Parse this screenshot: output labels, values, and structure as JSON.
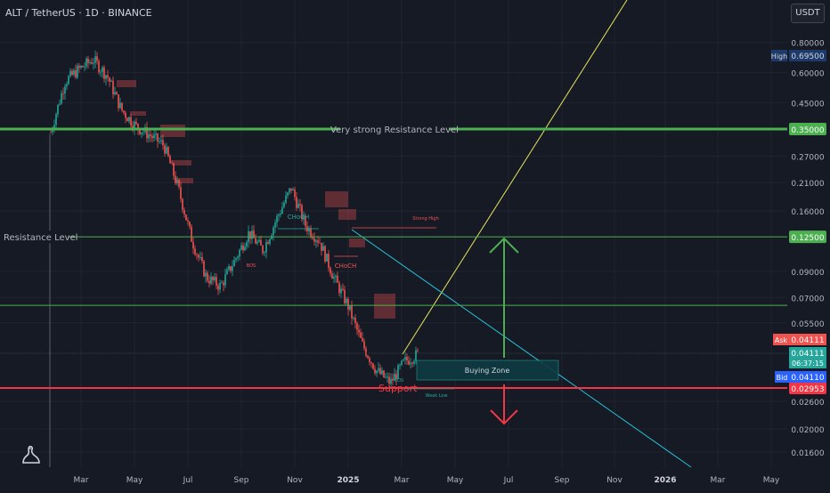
{
  "header": {
    "symbol": "ALT / TetherUS · 1D · BINANCE",
    "currency": "USDT"
  },
  "colors": {
    "background": "#161a25",
    "up": "#26a69a",
    "down": "#ef5350",
    "resistance": "#4caf50",
    "support": "#f23645",
    "trend_up": "#e8e35a",
    "trend_down": "#26c6da"
  },
  "chart_data": {
    "type": "candlestick",
    "scale": "log",
    "ylim": [
      0.0145,
      1.2
    ],
    "y_ticks": [
      "0.80000",
      "0.60000",
      "0.45000",
      "0.35000",
      "0.27000",
      "0.21000",
      "0.16000",
      "0.12500",
      "0.09000",
      "0.07000",
      "0.05500",
      "0.04111",
      "0.02953",
      "0.02600",
      "0.02000",
      "0.01600"
    ],
    "x_ticks": [
      "Mar",
      "May",
      "Jul",
      "Sep",
      "Nov",
      "2025",
      "Mar",
      "May",
      "Jul",
      "Sep",
      "Nov",
      "2026",
      "Mar",
      "May"
    ],
    "price_series": [
      0.34,
      0.55,
      0.62,
      0.68,
      0.58,
      0.42,
      0.36,
      0.33,
      0.3,
      0.2,
      0.12,
      0.085,
      0.078,
      0.1,
      0.13,
      0.11,
      0.15,
      0.2,
      0.14,
      0.12,
      0.085,
      0.065,
      0.045,
      0.035,
      0.031,
      0.038,
      0.041
    ],
    "levels": [
      {
        "label": "Very strong Resistance Level",
        "value": 0.35
      },
      {
        "label": "Resistance Level",
        "value": 0.125
      },
      {
        "label": "",
        "value": 0.065
      },
      {
        "label": "Support",
        "value": 0.02953
      }
    ],
    "price_labels": [
      {
        "name": "High",
        "value": "0.69500"
      },
      {
        "name": "Ask",
        "value": "0.04111"
      },
      {
        "name": "",
        "value": "0.04111"
      },
      {
        "name": "",
        "value": "06:37:15"
      },
      {
        "name": "Bid",
        "value": "0.04110"
      }
    ],
    "annotations": {
      "buying_zone": "Buying Zone",
      "choch_1": "CHoCH",
      "choch_2": "CHoCH",
      "strong_high": "Strong High",
      "weak_low": "Weak Low",
      "bos": "BOS",
      "bos_2": "BOS"
    }
  }
}
